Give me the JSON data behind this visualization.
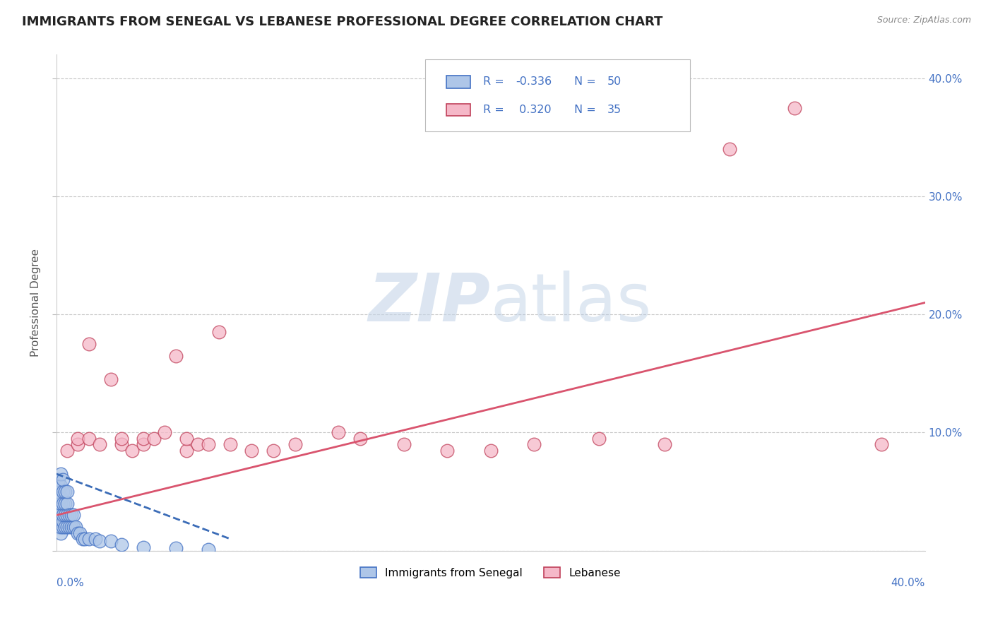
{
  "title": "IMMIGRANTS FROM SENEGAL VS LEBANESE PROFESSIONAL DEGREE CORRELATION CHART",
  "source": "Source: ZipAtlas.com",
  "ylabel": "Professional Degree",
  "watermark": "ZIPatlas",
  "xlim": [
    0.0,
    0.4
  ],
  "ylim": [
    0.0,
    0.42
  ],
  "yticks": [
    0.0,
    0.1,
    0.2,
    0.3,
    0.4
  ],
  "ytick_labels": [
    "",
    "10.0%",
    "20.0%",
    "30.0%",
    "40.0%"
  ],
  "color_senegal": "#aec6e8",
  "color_lebanese": "#f5b8c8",
  "color_senegal_line": "#3b6cb7",
  "color_lebanese_line": "#d9546e",
  "color_senegal_edge": "#4472c4",
  "color_lebanese_edge": "#c0405a",
  "background_color": "#ffffff",
  "title_color": "#222222",
  "title_fontsize": 13,
  "axis_label_color": "#4472c4",
  "legend_label1": "Immigrants from Senegal",
  "legend_label2": "Lebanese",
  "senegal_x": [
    0.001,
    0.001,
    0.001,
    0.001,
    0.001,
    0.001,
    0.001,
    0.001,
    0.002,
    0.002,
    0.002,
    0.002,
    0.002,
    0.002,
    0.002,
    0.002,
    0.002,
    0.003,
    0.003,
    0.003,
    0.003,
    0.003,
    0.003,
    0.004,
    0.004,
    0.004,
    0.004,
    0.005,
    0.005,
    0.005,
    0.005,
    0.006,
    0.006,
    0.007,
    0.007,
    0.008,
    0.008,
    0.009,
    0.01,
    0.011,
    0.012,
    0.013,
    0.015,
    0.018,
    0.02,
    0.025,
    0.03,
    0.04,
    0.055,
    0.07
  ],
  "senegal_y": [
    0.02,
    0.03,
    0.035,
    0.04,
    0.045,
    0.05,
    0.055,
    0.06,
    0.015,
    0.02,
    0.025,
    0.03,
    0.035,
    0.04,
    0.045,
    0.055,
    0.065,
    0.02,
    0.025,
    0.03,
    0.04,
    0.05,
    0.06,
    0.02,
    0.03,
    0.04,
    0.05,
    0.02,
    0.03,
    0.04,
    0.05,
    0.02,
    0.03,
    0.02,
    0.03,
    0.02,
    0.03,
    0.02,
    0.015,
    0.015,
    0.01,
    0.01,
    0.01,
    0.01,
    0.008,
    0.008,
    0.005,
    0.003,
    0.002,
    0.001
  ],
  "lebanese_x": [
    0.005,
    0.01,
    0.01,
    0.015,
    0.015,
    0.02,
    0.025,
    0.03,
    0.03,
    0.035,
    0.04,
    0.04,
    0.045,
    0.05,
    0.055,
    0.06,
    0.06,
    0.065,
    0.07,
    0.075,
    0.08,
    0.09,
    0.1,
    0.11,
    0.13,
    0.14,
    0.16,
    0.18,
    0.2,
    0.22,
    0.25,
    0.28,
    0.31,
    0.34,
    0.38
  ],
  "lebanese_y": [
    0.085,
    0.09,
    0.095,
    0.095,
    0.175,
    0.09,
    0.145,
    0.09,
    0.095,
    0.085,
    0.09,
    0.095,
    0.095,
    0.1,
    0.165,
    0.085,
    0.095,
    0.09,
    0.09,
    0.185,
    0.09,
    0.085,
    0.085,
    0.09,
    0.1,
    0.095,
    0.09,
    0.085,
    0.085,
    0.09,
    0.095,
    0.09,
    0.34,
    0.375,
    0.09
  ],
  "senegal_line_x": [
    0.0,
    0.08
  ],
  "senegal_line_y": [
    0.065,
    0.01
  ],
  "lebanese_line_x": [
    0.0,
    0.4
  ],
  "lebanese_line_y": [
    0.03,
    0.21
  ]
}
